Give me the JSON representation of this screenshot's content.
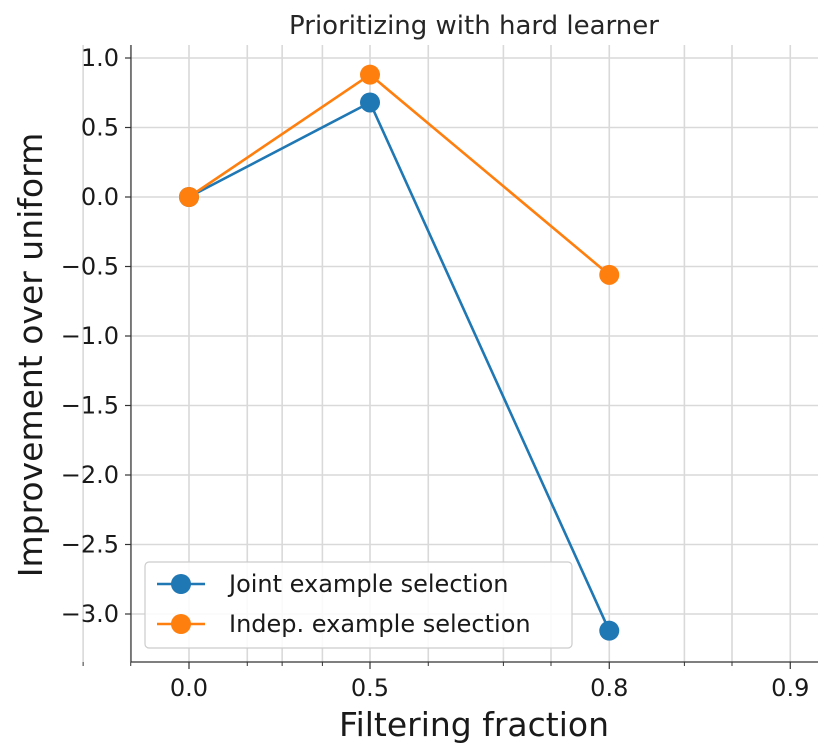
{
  "chart_data": {
    "type": "line",
    "title": "Prioritizing with hard learner",
    "xlabel": "Filtering fraction",
    "ylabel": "Improvement over uniform",
    "x_scale": "log(1 - x)",
    "x": [
      0.0,
      0.5,
      0.8
    ],
    "xticks": [
      "0.0",
      "0.5",
      "0.8",
      "0.9"
    ],
    "yticks": [
      "1.0",
      "0.5",
      "0.0",
      "−0.5",
      "−1.0",
      "−1.5",
      "−2.0",
      "−2.5",
      "−3.0"
    ],
    "ylim": [
      -3.3,
      1.08
    ],
    "grid": true,
    "legend_position": "lower-left",
    "series": [
      {
        "name": "Joint example selection",
        "color": "#1f77b4",
        "values": [
          0.0,
          0.68,
          -3.12
        ]
      },
      {
        "name": "Indep. example selection",
        "color": "#ff7f0e",
        "values": [
          0.0,
          0.88,
          -0.56
        ]
      }
    ]
  }
}
